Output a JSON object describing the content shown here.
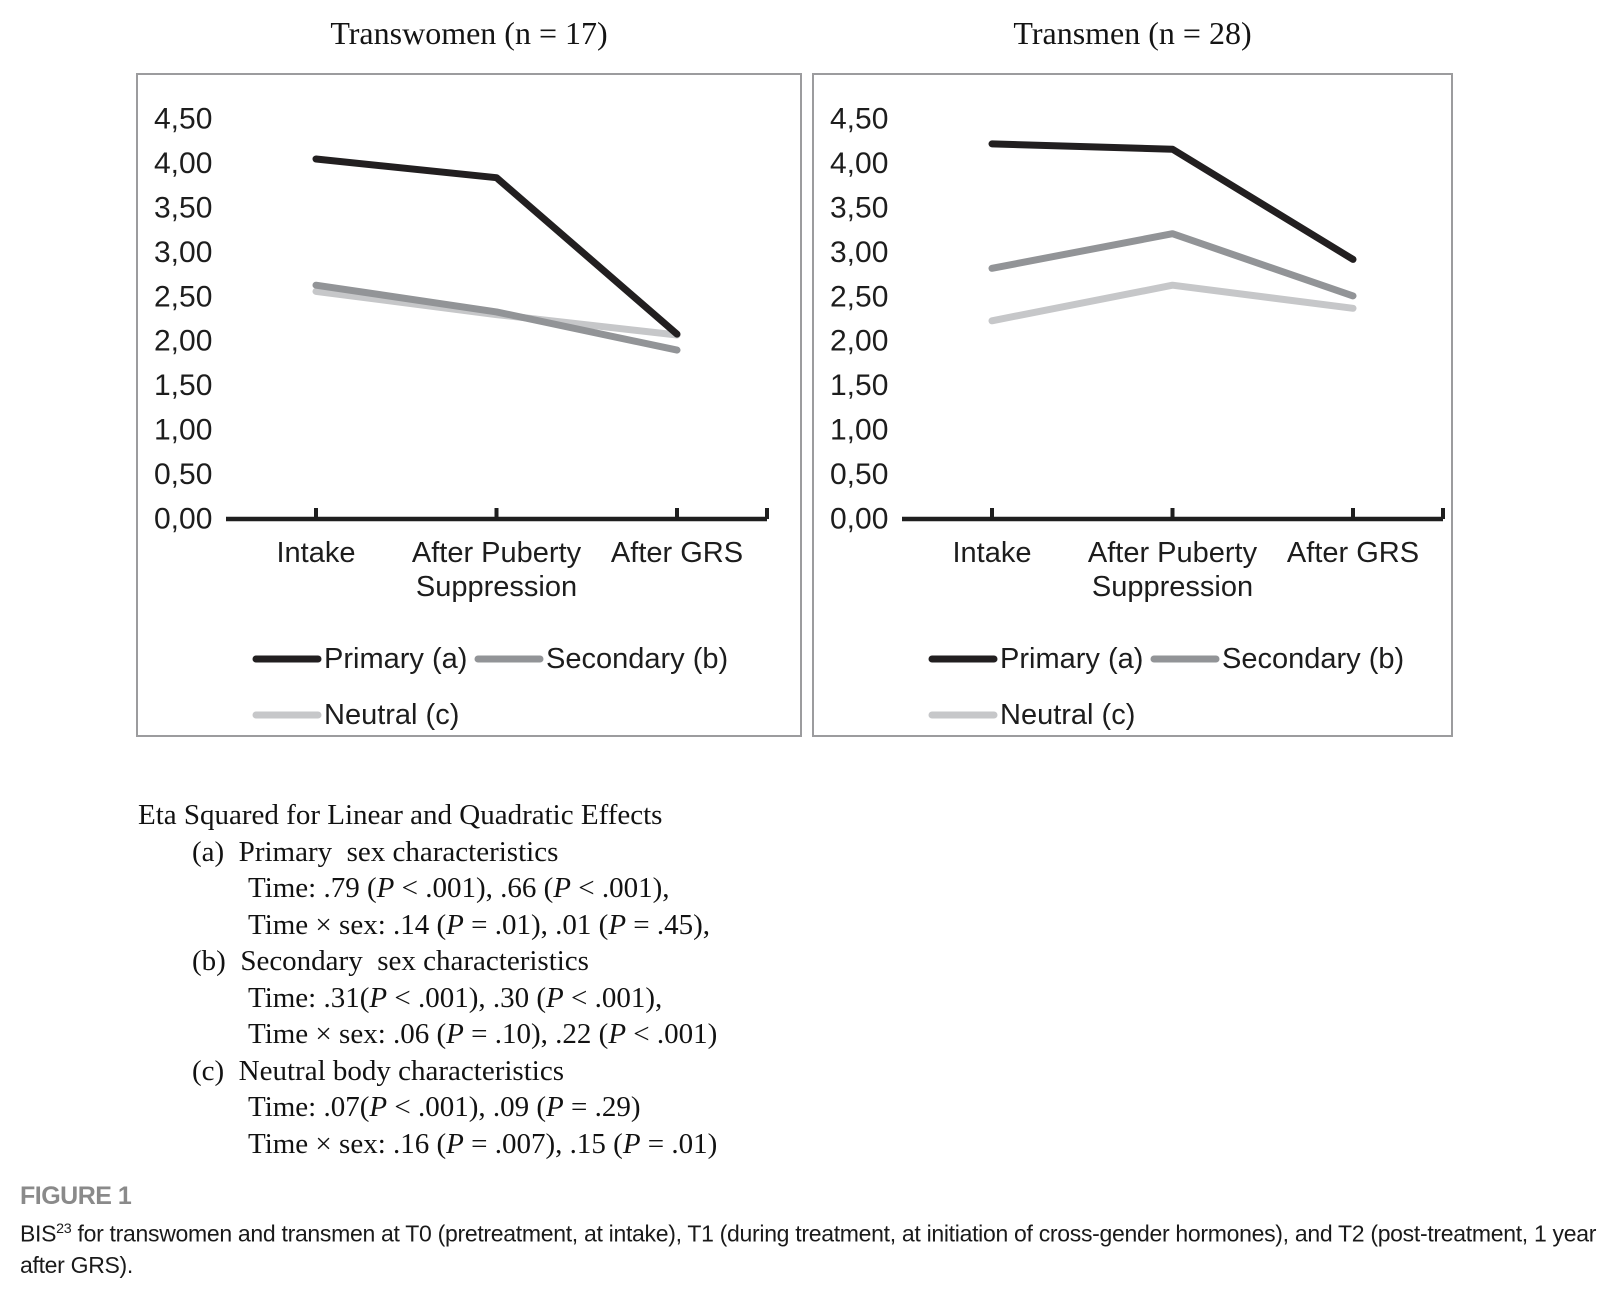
{
  "page": {
    "background": "#ffffff",
    "text_color": "#1d1d1d"
  },
  "chart_data": [
    {
      "type": "line",
      "title": "Transwomen (n = 17)",
      "categories": [
        "Intake",
        "After Puberty\nSuppression",
        "After GRS"
      ],
      "series": [
        {
          "name": "Primary (a)",
          "values": [
            4.05,
            3.84,
            2.08
          ],
          "color": "#221f20"
        },
        {
          "name": "Secondary (b)",
          "values": [
            2.63,
            2.33,
            1.9
          ],
          "color": "#929497"
        },
        {
          "name": "Neutral (c)",
          "values": [
            2.56,
            2.3,
            2.07
          ],
          "color": "#c6c7c9"
        }
      ],
      "ylim": [
        0,
        4.5
      ],
      "ytick_step": 0.5,
      "decimal_separator": ",",
      "grid": false,
      "legend_position": "bottom"
    },
    {
      "type": "line",
      "title": "Transmen (n = 28)",
      "categories": [
        "Intake",
        "After Puberty\nSuppression",
        "After GRS"
      ],
      "series": [
        {
          "name": "Primary (a)",
          "values": [
            4.22,
            4.16,
            2.92
          ],
          "color": "#221f20"
        },
        {
          "name": "Secondary (b)",
          "values": [
            2.82,
            3.21,
            2.51
          ],
          "color": "#929497"
        },
        {
          "name": "Neutral (c)",
          "values": [
            2.23,
            2.63,
            2.37
          ],
          "color": "#c6c7c9"
        }
      ],
      "ylim": [
        0,
        4.5
      ],
      "ytick_step": 0.5,
      "decimal_separator": ",",
      "grid": false,
      "legend_position": "bottom"
    }
  ],
  "eta_block": {
    "lines": [
      {
        "indent": 0,
        "text": "Eta Squared for Linear and Quadratic Effects"
      },
      {
        "indent": 1,
        "text": "(a)  Primary  sex characteristics"
      },
      {
        "indent": 2,
        "text": "Time: .79 (P < .001), .66 (P < .001),"
      },
      {
        "indent": 2,
        "text": "Time × sex: .14 (P = .01), .01 (P = .45),"
      },
      {
        "indent": 1,
        "text": "(b)  Secondary  sex characteristics"
      },
      {
        "indent": 2,
        "text": "Time: .31(P < .001), .30 (P < .001),"
      },
      {
        "indent": 2,
        "text": "Time × sex: .06 (P = .10), .22 (P < .001)"
      },
      {
        "indent": 1,
        "text": "(c)  Neutral body characteristics"
      },
      {
        "indent": 2,
        "text": "Time: .07(P < .001), .09 (P = .29)"
      },
      {
        "indent": 2,
        "text": "Time × sex: .16 (P = .007), .15 (P = .01)"
      }
    ]
  },
  "figure": {
    "label": "FIGURE 1",
    "label_color": "#8a8a8a",
    "caption_prefix": "BIS",
    "caption_sup": "23",
    "caption_rest": " for transwomen and transmen at T0 (pretreatment, at intake), T1 (during treatment, at initiation of cross-gender hormones), and T2 (post-treatment, 1 year after GRS)."
  }
}
